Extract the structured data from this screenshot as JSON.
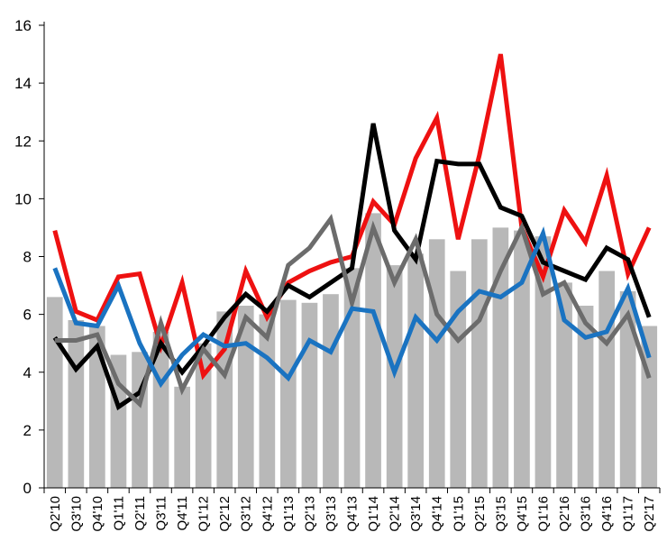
{
  "chart_data": {
    "type": "bar",
    "categories": [
      "Q2'10",
      "Q3'10",
      "Q4'10",
      "Q1'11",
      "Q2'11",
      "Q3'11",
      "Q4'11",
      "Q1'12",
      "Q2'12",
      "Q3'12",
      "Q4'12",
      "Q1'13",
      "Q2'13",
      "Q3'13",
      "Q4'13",
      "Q1'14",
      "Q2'14",
      "Q3'14",
      "Q4'14",
      "Q1'15",
      "Q2'15",
      "Q3'15",
      "Q4'15",
      "Q1'16",
      "Q2'16",
      "Q3'16",
      "Q4'16",
      "Q1'17",
      "Q2'17"
    ],
    "ylim": [
      0,
      16
    ],
    "yticks": [
      0,
      2,
      4,
      6,
      8,
      10,
      12,
      14,
      16
    ],
    "grid": false,
    "legend": "none",
    "bars": {
      "color": "#b8b8b8",
      "values": [
        6.6,
        5.8,
        5.6,
        4.6,
        4.7,
        5.4,
        3.5,
        5.0,
        6.1,
        6.3,
        6.0,
        6.5,
        6.4,
        6.7,
        7.6,
        9.5,
        7.7,
        8.1,
        8.6,
        7.5,
        8.6,
        9.0,
        8.9,
        8.7,
        7.1,
        6.3,
        7.5,
        6.8,
        5.6
      ]
    },
    "series": [
      {
        "color": "#ee1111",
        "values": [
          8.9,
          6.1,
          5.8,
          7.3,
          7.4,
          4.9,
          7.1,
          3.9,
          4.8,
          7.5,
          5.9,
          7.1,
          7.5,
          7.8,
          8.0,
          9.9,
          9.1,
          11.4,
          12.8,
          8.6,
          11.5,
          15.0,
          9.0,
          7.3,
          9.6,
          8.5,
          10.8,
          7.4,
          9.0
        ]
      },
      {
        "color": "#000000",
        "values": [
          5.2,
          4.1,
          4.9,
          2.8,
          3.3,
          5.0,
          4.0,
          4.9,
          5.9,
          6.7,
          6.1,
          7.0,
          6.6,
          7.1,
          7.6,
          12.6,
          8.9,
          7.9,
          11.3,
          11.2,
          11.2,
          9.7,
          9.4,
          7.8,
          7.5,
          7.2,
          8.3,
          7.9,
          5.9
        ]
      },
      {
        "color": "#6c6c6c",
        "values": [
          5.1,
          5.1,
          5.3,
          3.6,
          2.9,
          5.7,
          3.4,
          4.8,
          3.9,
          5.9,
          5.2,
          7.7,
          8.3,
          9.3,
          6.4,
          9.0,
          7.1,
          8.6,
          6.0,
          5.1,
          5.8,
          7.5,
          9.0,
          6.7,
          7.1,
          5.7,
          5.0,
          6.0,
          3.8
        ]
      },
      {
        "color": "#1a73c1",
        "values": [
          7.6,
          5.7,
          5.6,
          7.0,
          5.0,
          3.6,
          4.6,
          5.3,
          4.9,
          5.0,
          4.5,
          3.8,
          5.1,
          4.7,
          6.2,
          6.1,
          4.0,
          5.9,
          5.1,
          6.1,
          6.8,
          6.6,
          7.1,
          8.8,
          5.8,
          5.2,
          5.4,
          6.9,
          4.5
        ]
      }
    ]
  }
}
